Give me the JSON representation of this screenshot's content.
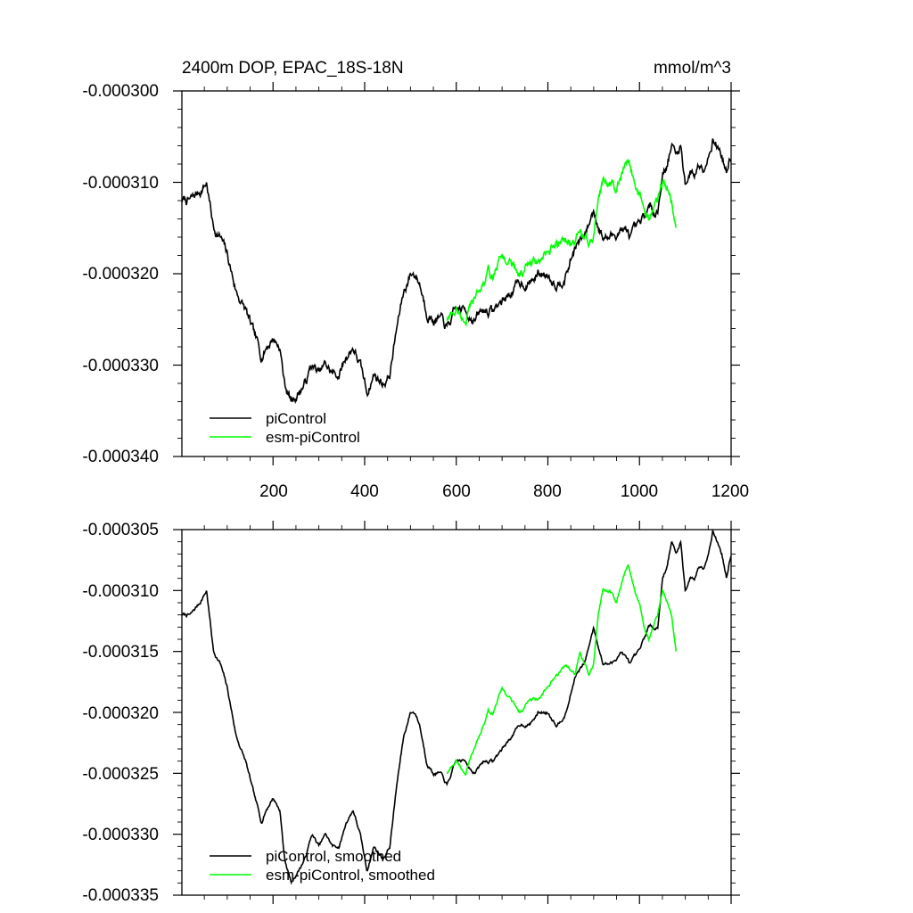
{
  "chart_data": [
    {
      "type": "line",
      "title": "2400m DOP, EPAC_18S-18N",
      "units": "mmol/m^3",
      "xlabel": "",
      "ylabel": "",
      "xlim": [
        1,
        1200
      ],
      "ylim": [
        -0.00034,
        -0.0003
      ],
      "xticks": [
        200,
        400,
        600,
        800,
        1000,
        1200
      ],
      "xtick_labels": [
        "200",
        "400",
        "600",
        "800",
        "1000",
        "1200"
      ],
      "yticks": [
        -0.0003,
        -0.00031,
        -0.00032,
        -0.00033,
        -0.00034
      ],
      "ytick_labels": [
        "-0.000300",
        "-0.000310",
        "-0.000320",
        "-0.000330",
        "-0.000340"
      ],
      "legend_position": "bottom-left",
      "series": [
        {
          "name": "piControl",
          "color": "#000000",
          "noise": 7.5e-07,
          "x": [
            1,
            20,
            40,
            55,
            70,
            85,
            100,
            120,
            140,
            160,
            175,
            185,
            200,
            215,
            225,
            240,
            255,
            270,
            285,
            300,
            315,
            330,
            345,
            360,
            375,
            390,
            405,
            420,
            440,
            455,
            470,
            485,
            500,
            510,
            520,
            535,
            550,
            565,
            580,
            600,
            620,
            640,
            660,
            680,
            700,
            720,
            740,
            760,
            780,
            800,
            820,
            840,
            860,
            880,
            900,
            920,
            940,
            960,
            980,
            1000,
            1020,
            1040,
            1050,
            1060,
            1070,
            1080,
            1090,
            1100,
            1110,
            1120,
            1130,
            1140,
            1150,
            1160,
            1170,
            1180,
            1190,
            1200
          ],
          "y": [
            -0.000312,
            -0.000312,
            -0.000311,
            -0.00031,
            -0.000315,
            -0.000316,
            -0.000318,
            -0.000322,
            -0.000324,
            -0.000327,
            -0.000329,
            -0.000328,
            -0.000327,
            -0.000328,
            -0.000332,
            -0.000334,
            -0.000333,
            -0.000332,
            -0.00033,
            -0.000331,
            -0.00033,
            -0.000331,
            -0.000331,
            -0.000329,
            -0.000328,
            -0.00033,
            -0.000333,
            -0.000331,
            -0.000332,
            -0.000331,
            -0.000326,
            -0.000322,
            -0.00032,
            -0.00032,
            -0.000321,
            -0.000324,
            -0.000325,
            -0.000325,
            -0.000326,
            -0.000324,
            -0.000324,
            -0.000325,
            -0.000324,
            -0.000324,
            -0.000323,
            -0.000322,
            -0.000321,
            -0.000321,
            -0.00032,
            -0.00032,
            -0.000321,
            -0.00032,
            -0.000317,
            -0.000316,
            -0.000313,
            -0.000316,
            -0.000316,
            -0.000315,
            -0.000316,
            -0.000315,
            -0.000313,
            -0.000313,
            -0.000309,
            -0.000308,
            -0.000306,
            -0.000307,
            -0.000306,
            -0.00031,
            -0.000309,
            -0.000309,
            -0.000308,
            -0.000308,
            -0.000307,
            -0.000305,
            -0.000306,
            -0.000307,
            -0.000309,
            -0.000307
          ]
        },
        {
          "name": "esm-piControl",
          "color": "#00ff00",
          "noise": 7.5e-07,
          "x": [
            580,
            600,
            620,
            640,
            660,
            670,
            680,
            700,
            720,
            740,
            760,
            780,
            800,
            820,
            840,
            860,
            870,
            880,
            890,
            900,
            910,
            920,
            935,
            950,
            965,
            975,
            990,
            1000,
            1010,
            1020,
            1030,
            1040,
            1050,
            1060,
            1070,
            1080
          ],
          "y": [
            -0.000325,
            -0.000324,
            -0.000325,
            -0.000323,
            -0.000321,
            -0.00032,
            -0.00032,
            -0.000318,
            -0.000319,
            -0.00032,
            -0.000319,
            -0.000319,
            -0.000318,
            -0.000317,
            -0.000316,
            -0.000317,
            -0.000315,
            -0.000316,
            -0.000317,
            -0.000316,
            -0.000312,
            -0.00031,
            -0.00031,
            -0.000311,
            -0.000309,
            -0.000308,
            -0.00031,
            -0.000311,
            -0.000313,
            -0.000314,
            -0.000313,
            -0.000312,
            -0.00031,
            -0.000311,
            -0.000312,
            -0.000315
          ]
        }
      ]
    },
    {
      "type": "line",
      "title": "",
      "xlabel": "",
      "ylabel": "",
      "xlim": [
        1,
        1200
      ],
      "ylim": [
        -0.000335,
        -0.000305
      ],
      "xticks": [
        200,
        400,
        600,
        800,
        1000,
        1200
      ],
      "yticks": [
        -0.000305,
        -0.00031,
        -0.000315,
        -0.00032,
        -0.000325,
        -0.00033,
        -0.000335
      ],
      "ytick_labels": [
        "-0.000305",
        "-0.000310",
        "-0.000315",
        "-0.000320",
        "-0.000325",
        "-0.000330",
        "-0.000335"
      ],
      "legend_position": "bottom-left",
      "series": [
        {
          "name": "piControl, smoothed",
          "color": "#000000",
          "noise": 2e-07,
          "x": [
            1,
            20,
            40,
            55,
            70,
            85,
            100,
            120,
            140,
            160,
            175,
            185,
            200,
            215,
            225,
            240,
            255,
            270,
            285,
            300,
            315,
            330,
            345,
            360,
            375,
            390,
            405,
            420,
            440,
            455,
            470,
            485,
            500,
            510,
            520,
            535,
            550,
            565,
            580,
            600,
            620,
            640,
            660,
            680,
            700,
            720,
            740,
            760,
            780,
            800,
            820,
            840,
            860,
            880,
            900,
            920,
            940,
            960,
            980,
            1000,
            1020,
            1040,
            1050,
            1060,
            1070,
            1080,
            1090,
            1100,
            1110,
            1120,
            1130,
            1140,
            1150,
            1160,
            1170,
            1180,
            1190,
            1200
          ],
          "y": [
            -0.000312,
            -0.000312,
            -0.000311,
            -0.00031,
            -0.000315,
            -0.000316,
            -0.000318,
            -0.000322,
            -0.000324,
            -0.000327,
            -0.000329,
            -0.000328,
            -0.000327,
            -0.000328,
            -0.000332,
            -0.000334,
            -0.000333,
            -0.000332,
            -0.00033,
            -0.000331,
            -0.00033,
            -0.000331,
            -0.000331,
            -0.000329,
            -0.000328,
            -0.00033,
            -0.000333,
            -0.000331,
            -0.000332,
            -0.000331,
            -0.000326,
            -0.000322,
            -0.00032,
            -0.00032,
            -0.000321,
            -0.000324,
            -0.000325,
            -0.000325,
            -0.000326,
            -0.000324,
            -0.000324,
            -0.000325,
            -0.000324,
            -0.000324,
            -0.000323,
            -0.000322,
            -0.000321,
            -0.000321,
            -0.00032,
            -0.00032,
            -0.000321,
            -0.00032,
            -0.000317,
            -0.000316,
            -0.000313,
            -0.000316,
            -0.000316,
            -0.000315,
            -0.000316,
            -0.000315,
            -0.000313,
            -0.000313,
            -0.000309,
            -0.000308,
            -0.000306,
            -0.000307,
            -0.000306,
            -0.00031,
            -0.000309,
            -0.000309,
            -0.000308,
            -0.000308,
            -0.000307,
            -0.000305,
            -0.000306,
            -0.000307,
            -0.000309,
            -0.000307
          ]
        },
        {
          "name": "esm-piControl, smoothed",
          "color": "#00ff00",
          "noise": 2e-07,
          "x": [
            580,
            600,
            620,
            640,
            660,
            670,
            680,
            700,
            720,
            740,
            760,
            780,
            800,
            820,
            840,
            860,
            870,
            880,
            890,
            900,
            910,
            920,
            935,
            950,
            965,
            975,
            990,
            1000,
            1010,
            1020,
            1030,
            1040,
            1050,
            1060,
            1070,
            1080
          ],
          "y": [
            -0.000325,
            -0.000324,
            -0.000325,
            -0.000323,
            -0.000321,
            -0.00032,
            -0.00032,
            -0.000318,
            -0.000319,
            -0.00032,
            -0.000319,
            -0.000319,
            -0.000318,
            -0.000317,
            -0.000316,
            -0.000317,
            -0.000315,
            -0.000316,
            -0.000317,
            -0.000316,
            -0.000312,
            -0.00031,
            -0.00031,
            -0.000311,
            -0.000309,
            -0.000308,
            -0.00031,
            -0.000311,
            -0.000313,
            -0.000314,
            -0.000313,
            -0.000312,
            -0.00031,
            -0.000311,
            -0.000312,
            -0.000315
          ]
        }
      ]
    }
  ]
}
